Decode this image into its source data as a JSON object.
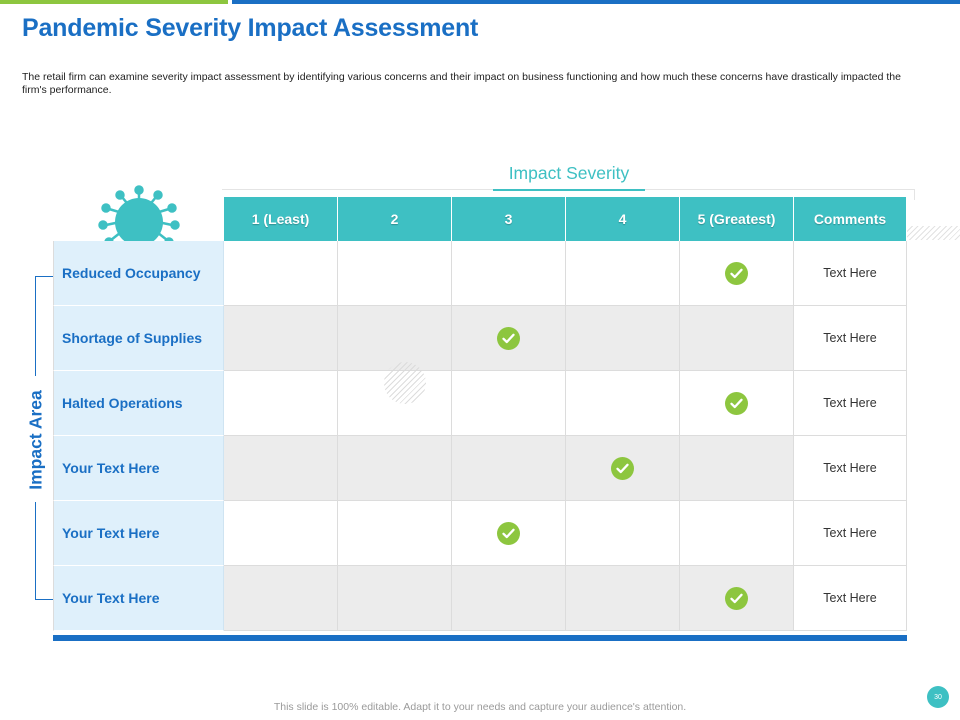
{
  "title": "Pandemic Severity Impact Assessment",
  "subtitle": "The retail firm can examine severity impact assessment by identifying various concerns and their impact on business functioning and how much these concerns have drastically impacted the firm's performance.",
  "severity_heading": "Impact Severity",
  "area_heading": "Impact Area",
  "columns": [
    "1 (Least)",
    "2",
    "3",
    "4",
    "5 (Greatest)",
    "Comments"
  ],
  "rows": [
    {
      "label": "Reduced Occupancy",
      "severity": 5,
      "comment": "Text Here"
    },
    {
      "label": "Shortage of Supplies",
      "severity": 3,
      "comment": "Text Here"
    },
    {
      "label": "Halted Operations",
      "severity": 5,
      "comment": "Text Here"
    },
    {
      "label": "Your Text Here",
      "severity": 4,
      "comment": "Text Here"
    },
    {
      "label": "Your Text Here",
      "severity": 3,
      "comment": "Text Here"
    },
    {
      "label": "Your Text Here",
      "severity": 5,
      "comment": "Text Here"
    }
  ],
  "footer": "This slide is 100% editable. Adapt it to your needs and capture your audience's attention.",
  "page_number": "30",
  "colors": {
    "brand_blue": "#1a6fc4",
    "teal": "#3ec0c3",
    "green": "#8dc63f",
    "label_bg": "#dff0fb"
  }
}
